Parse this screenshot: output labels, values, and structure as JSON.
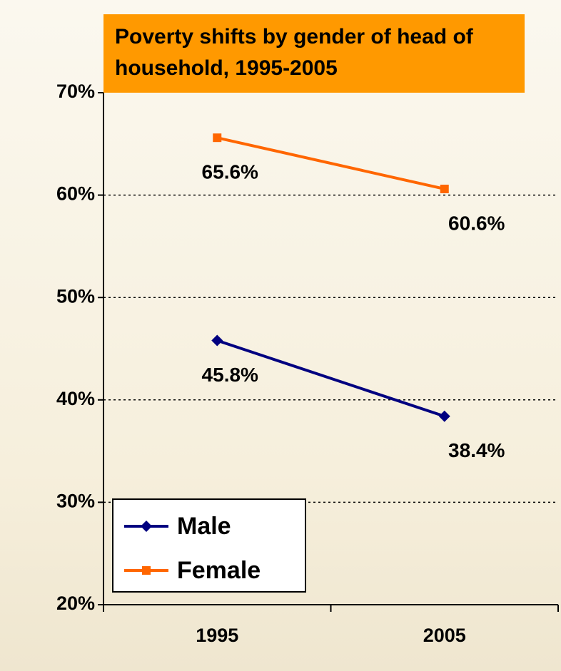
{
  "chart_data": {
    "type": "line",
    "title": "Poverty shifts by gender of head of household, 1995-2005",
    "categories": [
      "1995",
      "2005"
    ],
    "series": [
      {
        "name": "Male",
        "color": "#000080",
        "marker": "diamond",
        "values": [
          45.8,
          38.4
        ],
        "value_labels": [
          "45.8%",
          "38.4%"
        ]
      },
      {
        "name": "Female",
        "color": "#ff6600",
        "marker": "square",
        "values": [
          65.6,
          60.6
        ],
        "value_labels": [
          "65.6%",
          "60.6%"
        ]
      }
    ],
    "ylim": [
      20,
      70
    ],
    "yticks": [
      {
        "value": 20,
        "label": "20%"
      },
      {
        "value": 30,
        "label": "30%"
      },
      {
        "value": 40,
        "label": "40%"
      },
      {
        "value": 50,
        "label": "50%"
      },
      {
        "value": 60,
        "label": "60%"
      },
      {
        "value": 70,
        "label": "70%"
      }
    ],
    "grid": true,
    "legend": "lower left"
  }
}
